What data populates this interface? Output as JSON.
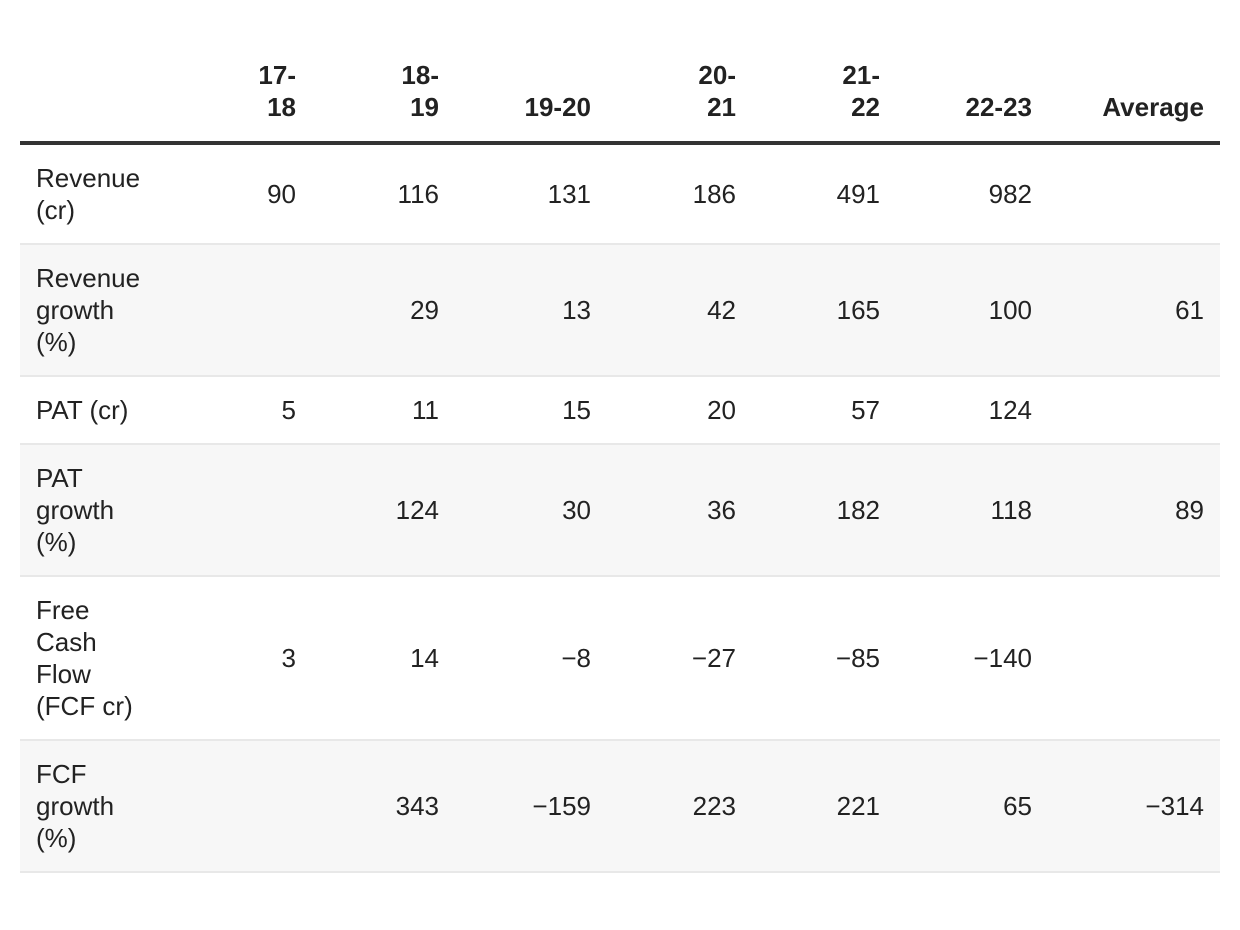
{
  "table": {
    "columns": [
      "",
      "17-18",
      "18-19",
      "19-20",
      "20-21",
      "21-22",
      "22-23",
      "Average"
    ],
    "rows": [
      {
        "label": "Revenue (cr)",
        "values": [
          "90",
          "116",
          "131",
          "186",
          "491",
          "982",
          ""
        ]
      },
      {
        "label": "Revenue growth (%)",
        "values": [
          "",
          "29",
          "13",
          "42",
          "165",
          "100",
          "61"
        ]
      },
      {
        "label": "PAT (cr)",
        "values": [
          "5",
          "11",
          "15",
          "20",
          "57",
          "124",
          ""
        ]
      },
      {
        "label": "PAT growth (%)",
        "values": [
          "",
          "124",
          "30",
          "36",
          "182",
          "118",
          "89"
        ]
      },
      {
        "label": "Free Cash Flow (FCF cr)",
        "values": [
          "3",
          "14",
          "−8",
          "−27",
          "−85",
          "−140",
          ""
        ]
      },
      {
        "label": "FCF growth (%)",
        "values": [
          "",
          "343",
          "−159",
          "223",
          "221",
          "65",
          "−314"
        ]
      }
    ]
  }
}
